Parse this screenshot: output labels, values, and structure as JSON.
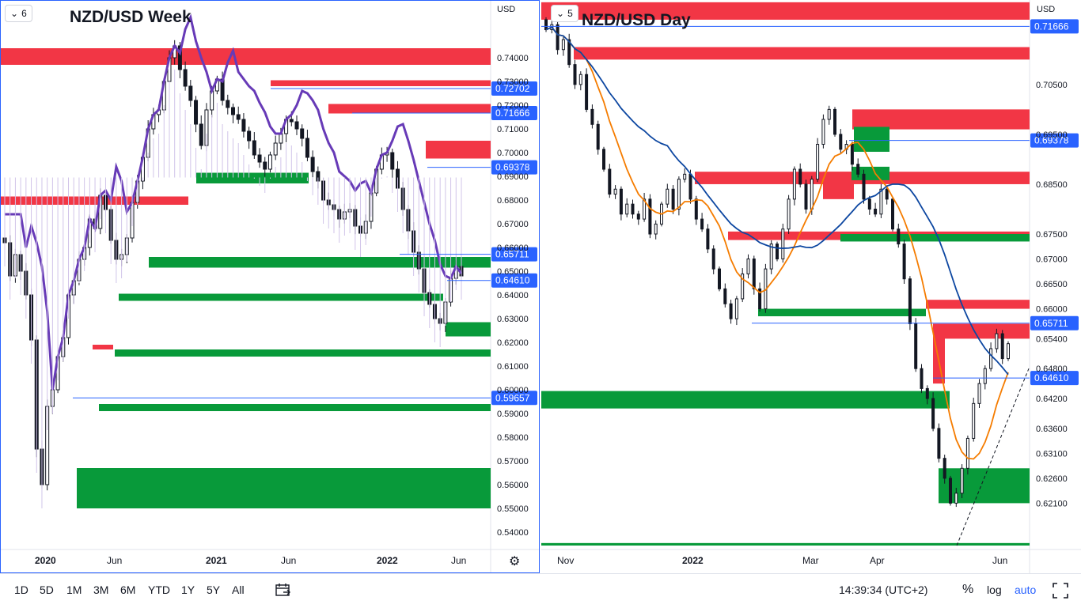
{
  "left_chart": {
    "title": "NZD/USD Week",
    "legend_count": "6",
    "currency": "USD",
    "price_ticks": [
      "0.74000",
      "0.73000",
      "0.72000",
      "0.71000",
      "0.70000",
      "0.69000",
      "0.68000",
      "0.67000",
      "0.66000",
      "0.65000",
      "0.64000",
      "0.63000",
      "0.62000",
      "0.61000",
      "0.60000",
      "0.59000",
      "0.58000",
      "0.57000",
      "0.56000",
      "0.55000",
      "0.54000"
    ],
    "time_ticks": [
      "2020",
      "Jun",
      "2021",
      "Jun",
      "2022",
      "Jun"
    ],
    "level_labels": [
      "0.72702",
      "0.71666",
      "0.69378",
      "0.65711",
      "0.64610",
      "0.59657"
    ],
    "gear_icon": "gear-icon"
  },
  "right_chart": {
    "title": "NZD/USD Day",
    "legend_count": "5",
    "currency": "USD",
    "price_ticks": [
      "0.70500",
      "0.69500",
      "0.68500",
      "0.67500",
      "0.67000",
      "0.66500",
      "0.66000",
      "0.65400",
      "0.64800",
      "0.64200",
      "0.63600",
      "0.63100",
      "0.62600",
      "0.62100"
    ],
    "time_ticks": [
      "Nov",
      "2022",
      "Mar",
      "Apr",
      "Jun"
    ],
    "level_labels": [
      "0.71666",
      "0.69378",
      "0.65711",
      "0.64610"
    ]
  },
  "colors": {
    "resistance_zone": "#f23645",
    "support_zone": "#089a3a",
    "level_line": "#2962ff",
    "envelope": "#673ab7",
    "ma_fast": "#f57c00",
    "ma_slow": "#0d47a1"
  },
  "toolbar": {
    "timeframes": [
      "1D",
      "5D",
      "1M",
      "3M",
      "6M",
      "YTD",
      "1Y",
      "5Y",
      "All"
    ],
    "compare_icon": "calendar-range-icon",
    "clock": "14:39:34 (UTC+2)",
    "percent": "%",
    "log": "log",
    "auto": "auto",
    "fullscreen_icon": "fullscreen-icon"
  },
  "chart_data": [
    {
      "type": "candlestick",
      "title": "NZD/USD Week",
      "ylim": [
        0.535,
        0.755
      ],
      "x_ticks": [
        "2020",
        "Jun",
        "2021",
        "Jun",
        "2022",
        "Jun"
      ],
      "horizontal_levels": [
        0.72702,
        0.71666,
        0.69378,
        0.65711,
        0.6461,
        0.59657
      ],
      "resistance_zones": [
        [
          0.737,
          0.744
        ],
        [
          0.728,
          0.7305
        ],
        [
          0.7165,
          0.7205
        ],
        [
          0.6975,
          0.705
        ],
        [
          0.678,
          0.6815
        ],
        [
          0.617,
          0.619
        ]
      ],
      "support_zones": [
        [
          0.687,
          0.6915
        ],
        [
          0.6515,
          0.656
        ],
        [
          0.6375,
          0.6405
        ],
        [
          0.6225,
          0.6285
        ],
        [
          0.614,
          0.617
        ],
        [
          0.591,
          0.594
        ],
        [
          0.55,
          0.567
        ]
      ],
      "series": [
        {
          "values": [
            0.662,
            0.648,
            0.657,
            0.65,
            0.64,
            0.621,
            0.575,
            0.56,
            0.593,
            0.6,
            0.614,
            0.622,
            0.64,
            0.646,
            0.655,
            0.66,
            0.672,
            0.668,
            0.682,
            0.676,
            0.663,
            0.655,
            0.657,
            0.664,
            0.679,
            0.688,
            0.698,
            0.71,
            0.716,
            0.718,
            0.73,
            0.74,
            0.745,
            0.735,
            0.728,
            0.722,
            0.712,
            0.703,
            0.718,
            0.726,
            0.731,
            0.722,
            0.719,
            0.716,
            0.714,
            0.709,
            0.705,
            0.699,
            0.696,
            0.693,
            0.699,
            0.704,
            0.708,
            0.714,
            0.713,
            0.71,
            0.706,
            0.698,
            0.692,
            0.688,
            0.68,
            0.678,
            0.676,
            0.672,
            0.675,
            0.676,
            0.669,
            0.666,
            0.671,
            0.683,
            0.693,
            0.699,
            0.7,
            0.693,
            0.685,
            0.676,
            0.667,
            0.658,
            0.651,
            0.641,
            0.636,
            0.63,
            0.628,
            0.637,
            0.647,
            0.652,
            0.648
          ]
        }
      ]
    },
    {
      "type": "candlestick",
      "title": "NZD/USD Day",
      "ylim": [
        0.6125,
        0.721
      ],
      "x_ticks": [
        "Nov",
        "2022",
        "Mar",
        "Apr",
        "Jun"
      ],
      "horizontal_levels": [
        0.71666,
        0.69378,
        0.65711,
        0.6461
      ],
      "resistance_zones": [
        [
          0.718,
          0.7215
        ],
        [
          0.71,
          0.7125
        ],
        [
          0.696,
          0.7
        ],
        [
          0.685,
          0.6875
        ],
        [
          0.682,
          0.6875
        ],
        [
          0.6738,
          0.6755
        ],
        [
          0.66,
          0.6618
        ],
        [
          0.654,
          0.657
        ],
        [
          0.645,
          0.6555
        ]
      ],
      "support_zones": [
        [
          0.6915,
          0.6965
        ],
        [
          0.6858,
          0.6885
        ],
        [
          0.6735,
          0.675
        ],
        [
          0.6585,
          0.66
        ],
        [
          0.64,
          0.6435
        ],
        [
          0.621,
          0.628
        ],
        [
          0.6125,
          0.613
        ]
      ],
      "series": [
        {
          "name": "",
          "values": [
            0.716,
            0.717,
            0.712,
            0.714,
            0.709,
            0.705,
            0.707,
            0.7,
            0.697,
            0.692,
            0.688,
            0.683,
            0.684,
            0.679,
            0.681,
            0.679,
            0.678,
            0.682,
            0.675,
            0.677,
            0.681,
            0.684,
            0.68,
            0.686,
            0.687,
            0.682,
            0.678,
            0.676,
            0.672,
            0.668,
            0.664,
            0.661,
            0.658,
            0.662,
            0.667,
            0.67,
            0.664,
            0.66,
            0.668,
            0.673,
            0.67,
            0.676,
            0.682,
            0.688,
            0.685,
            0.68,
            0.686,
            0.693,
            0.698,
            0.7,
            0.695,
            0.692,
            0.693,
            0.689,
            0.687,
            0.682,
            0.68,
            0.679,
            0.684,
            0.682,
            0.676,
            0.673,
            0.666,
            0.657,
            0.648,
            0.644,
            0.642,
            0.636,
            0.63,
            0.626,
            0.621,
            0.623,
            0.628,
            0.634,
            0.641,
            0.645,
            0.648,
            0.652,
            0.655,
            0.65,
            0.653
          ]
        }
      ]
    }
  ]
}
